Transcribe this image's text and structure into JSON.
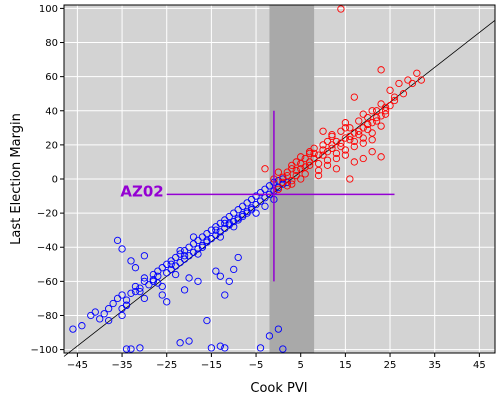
{
  "chart_data": {
    "type": "scatter",
    "xlabel": "Cook PVI",
    "ylabel": "Last Election Margin",
    "xlim": [
      -48,
      48.5
    ],
    "ylim": [
      -102,
      102
    ],
    "x_ticks": [
      -45,
      -35,
      -25,
      -15,
      -5,
      5,
      15,
      25,
      35,
      45
    ],
    "y_ticks": [
      -100,
      -80,
      -60,
      -40,
      -20,
      0,
      20,
      40,
      60,
      80,
      100
    ],
    "x_tick_labels": [
      "−45",
      "−35",
      "−25",
      "−15",
      "−5",
      "5",
      "15",
      "25",
      "35",
      "45"
    ],
    "y_tick_labels": [
      "−100",
      "−80",
      "−60",
      "−40",
      "−20",
      "0",
      "20",
      "40",
      "60",
      "80",
      "100"
    ],
    "grid": true,
    "colors": {
      "background": "#d3d3d3",
      "grid": "#ffffff",
      "band": "#a9a9a9",
      "dem": "#0000ff",
      "rep": "#ff0000",
      "highlight": "#9400d3",
      "fit_line": "#000000"
    },
    "shaded_band": {
      "x_from": -2,
      "x_to": 8
    },
    "reference_line": {
      "x": [
        -48,
        48.5
      ],
      "y": [
        -104,
        93
      ]
    },
    "highlight": {
      "label": "AZ02",
      "x": -1,
      "y": -9,
      "hline_x": [
        -25,
        26
      ],
      "vline_y": [
        -60,
        40
      ]
    },
    "series": [
      {
        "color": "#0000ff",
        "x": [
          -46,
          -44,
          -42,
          -41,
          -40,
          -39,
          -38,
          -38,
          -37,
          -36,
          -35,
          -35,
          -34,
          -34,
          -33,
          -32,
          -32,
          -31,
          -30,
          -30,
          -29,
          -28,
          -28,
          -27,
          -27,
          -26,
          -25,
          -25,
          -24,
          -24,
          -23,
          -23,
          -22,
          -22,
          -21,
          -21,
          -20,
          -20,
          -19,
          -19,
          -18,
          -18,
          -17,
          -17,
          -16,
          -16,
          -15,
          -15,
          -14,
          -14,
          -13,
          -13,
          -12,
          -12,
          -11,
          -11,
          -10,
          -10,
          -9,
          -9,
          -8,
          -8,
          -7,
          -7,
          -6,
          -6,
          -5,
          -5,
          -4,
          -4,
          -3,
          -3,
          -2,
          -2,
          -1,
          -1,
          0,
          0,
          1,
          1,
          2,
          -33,
          -32,
          -30,
          -28,
          -26,
          -24,
          -22,
          -20,
          -19,
          -18,
          -16,
          -14,
          -12,
          -10,
          -8,
          -6,
          -35,
          -34,
          -31,
          -27,
          -23,
          -21,
          -17,
          -13,
          -11,
          -9,
          -7,
          -5,
          -3,
          -1,
          -36,
          -35,
          -30,
          -25,
          -21,
          -18,
          -14,
          -13,
          -12,
          -11,
          -10,
          -9,
          -22,
          -20,
          -16,
          -34,
          -33,
          -31,
          -26,
          -15,
          -13,
          -12,
          -4,
          -2,
          0,
          1
        ],
        "y": [
          -88,
          -86,
          -80,
          -78,
          -82,
          -79,
          -76,
          -83,
          -73,
          -70,
          -76,
          -68,
          -74,
          -71,
          -67,
          -66,
          -63,
          -64,
          -60,
          -58,
          -62,
          -56,
          -59,
          -54,
          -57,
          -52,
          -55,
          -50,
          -53,
          -48,
          -51,
          -46,
          -49,
          -44,
          -47,
          -42,
          -45,
          -40,
          -43,
          -38,
          -41,
          -36,
          -39,
          -34,
          -37,
          -32,
          -35,
          -30,
          -33,
          -28,
          -31,
          -26,
          -29,
          -24,
          -27,
          -22,
          -25,
          -20,
          -23,
          -18,
          -21,
          -16,
          -19,
          -14,
          -17,
          -12,
          -15,
          -10,
          -13,
          -8,
          -11,
          -6,
          -9,
          -4,
          -7,
          -2,
          -5,
          -1,
          -3,
          0,
          -2,
          -48,
          -52,
          -45,
          -60,
          -63,
          -50,
          -42,
          -58,
          -34,
          -44,
          -36,
          -30,
          -26,
          -28,
          -22,
          -18,
          -80,
          -74,
          -66,
          -61,
          -56,
          -45,
          -40,
          -34,
          -26,
          -24,
          -20,
          -20,
          -16,
          -12,
          -36,
          -41,
          -70,
          -72,
          -65,
          -60,
          -54,
          -57,
          -68,
          -60,
          -53,
          -46,
          -96,
          -95,
          -83,
          -100,
          -100,
          -99,
          -68,
          -99,
          -98,
          -99,
          -99,
          -92,
          -88,
          -100
        ]
      },
      {
        "color": "#ff0000",
        "x": [
          -3,
          -1,
          0,
          1,
          2,
          3,
          4,
          5,
          6,
          7,
          8,
          9,
          10,
          11,
          12,
          13,
          14,
          15,
          16,
          17,
          18,
          19,
          20,
          21,
          22,
          23,
          24,
          25,
          26,
          28,
          30,
          2,
          3,
          4,
          5,
          6,
          7,
          8,
          9,
          10,
          11,
          12,
          13,
          14,
          15,
          16,
          17,
          18,
          19,
          20,
          21,
          22,
          23,
          24,
          1,
          2,
          3,
          4,
          5,
          6,
          7,
          8,
          9,
          10,
          11,
          12,
          13,
          14,
          15,
          16,
          17,
          18,
          19,
          20,
          21,
          22,
          24,
          26,
          29,
          31,
          0,
          3,
          5,
          7,
          9,
          11,
          13,
          15,
          17,
          19,
          21,
          23,
          25,
          27,
          32,
          14,
          17,
          20,
          23,
          19,
          16,
          10,
          12,
          15,
          21,
          23
        ],
        "y": [
          6,
          0,
          4,
          -2,
          2,
          8,
          5,
          9,
          12,
          10,
          15,
          14,
          17,
          16,
          20,
          22,
          19,
          24,
          23,
          27,
          26,
          30,
          29,
          33,
          34,
          37,
          40,
          43,
          46,
          50,
          56,
          -4,
          -1,
          2,
          6,
          3,
          8,
          12,
          9,
          14,
          11,
          18,
          15,
          21,
          17,
          25,
          22,
          28,
          24,
          32,
          27,
          36,
          31,
          38,
          1,
          4,
          -3,
          10,
          13,
          7,
          16,
          18,
          5,
          20,
          8,
          25,
          12,
          28,
          14,
          30,
          19,
          34,
          21,
          36,
          23,
          40,
          42,
          48,
          58,
          62,
          -6,
          6,
          0,
          15,
          2,
          22,
          6,
          30,
          10,
          38,
          16,
          44,
          52,
          56,
          58,
          100,
          48,
          32,
          64,
          12,
          0,
          28,
          26,
          33,
          40,
          13
        ]
      }
    ]
  }
}
